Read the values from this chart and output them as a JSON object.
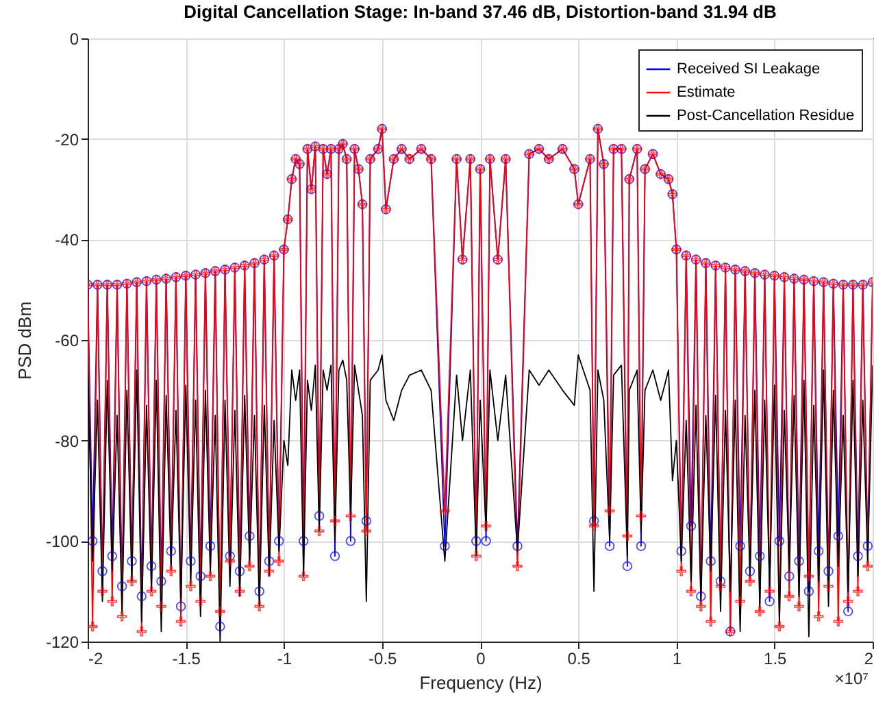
{
  "chart_data": {
    "type": "line",
    "title": "Digital Cancellation Stage: In-band 37.46 dB, Distortion-band 31.94 dB",
    "xlabel": "Frequency (Hz)",
    "ylabel": "PSD dBm",
    "annotations": [
      "×10⁷"
    ],
    "xlim": [
      -2,
      2
    ],
    "xticks": [
      -2,
      -1.5,
      -1,
      -0.5,
      0,
      0.5,
      1,
      1.5,
      2
    ],
    "ylim": [
      -120,
      0
    ],
    "yticks": [
      -120,
      -100,
      -80,
      -60,
      -40,
      -20,
      0
    ],
    "grid": true,
    "legend": "top right",
    "x": [
      -2,
      -1.975,
      -1.95,
      -1.925,
      -1.9,
      -1.875,
      -1.85,
      -1.825,
      -1.8,
      -1.775,
      -1.75,
      -1.725,
      -1.7,
      -1.675,
      -1.65,
      -1.625,
      -1.6,
      -1.575,
      -1.55,
      -1.525,
      -1.5,
      -1.475,
      -1.45,
      -1.425,
      -1.4,
      -1.375,
      -1.35,
      -1.325,
      -1.3,
      -1.275,
      -1.25,
      -1.225,
      -1.2,
      -1.175,
      -1.15,
      -1.125,
      -1.1,
      -1.075,
      -1.05,
      -1.025,
      -1,
      -0.98,
      -0.96,
      -0.94,
      -0.92,
      -0.9,
      -0.88,
      -0.86,
      -0.84,
      -0.82,
      -0.8,
      -0.78,
      -0.76,
      -0.74,
      -0.72,
      -0.7,
      -0.68,
      -0.66,
      -0.64,
      -0.62,
      -0.6,
      -0.58,
      -0.56,
      -0.52,
      -0.5,
      -0.48,
      -0.44,
      -0.4,
      -0.36,
      -0.3,
      -0.25,
      -0.18,
      -0.12,
      -0.09,
      -0.05,
      -0.02,
      0,
      0.03,
      0.05,
      0.09,
      0.13,
      0.19,
      0.25,
      0.3,
      0.35,
      0.42,
      0.48,
      0.5,
      0.56,
      0.58,
      0.6,
      0.63,
      0.66,
      0.68,
      0.72,
      0.75,
      0.76,
      0.8,
      0.82,
      0.84,
      0.88,
      0.92,
      0.96,
      0.98,
      1,
      1.025,
      1.05,
      1.075,
      1.1,
      1.125,
      1.15,
      1.175,
      1.2,
      1.225,
      1.25,
      1.275,
      1.3,
      1.325,
      1.35,
      1.375,
      1.4,
      1.425,
      1.45,
      1.475,
      1.5,
      1.525,
      1.55,
      1.575,
      1.6,
      1.625,
      1.65,
      1.675,
      1.7,
      1.725,
      1.75,
      1.775,
      1.8,
      1.825,
      1.85,
      1.875,
      1.9,
      1.925,
      1.95,
      1.975,
      2
    ],
    "series": [
      {
        "name": "Received SI Leakage",
        "color": "#0000ff",
        "marker": "circle",
        "values": [
          -49,
          -100,
          -49,
          -106,
          -49,
          -103,
          -49,
          -109,
          -48.8,
          -104,
          -48.5,
          -111,
          -48.3,
          -105,
          -48,
          -108,
          -47.8,
          -102,
          -47.5,
          -113,
          -47.2,
          -104,
          -47,
          -107,
          -46.7,
          -101,
          -46.3,
          -117,
          -46,
          -103,
          -45.6,
          -106,
          -45.2,
          -99,
          -44.7,
          -110,
          -44,
          -104,
          -43.2,
          -100,
          -42,
          -36,
          -28,
          -24,
          -25,
          -100,
          -22,
          -30,
          -21.5,
          -95,
          -22,
          -27,
          -22,
          -103,
          -22,
          -21,
          -24,
          -100,
          -22,
          -26,
          -33,
          -96,
          -24,
          -22,
          -18,
          -34,
          -24,
          -22,
          -24,
          -22,
          -24,
          -101,
          -24,
          -44,
          -24,
          -100,
          -26,
          -100,
          -24,
          -44,
          -24,
          -101,
          -23,
          -22,
          -24,
          -22,
          -26,
          -33,
          -24,
          -96,
          -18,
          -25,
          -101,
          -22,
          -22,
          -105,
          -28,
          -22,
          -101,
          -26,
          -23,
          -27,
          -28,
          -31,
          -42,
          -102,
          -43.2,
          -97,
          -44,
          -111,
          -44.7,
          -104,
          -45.2,
          -108,
          -45.6,
          -118,
          -46,
          -101,
          -46.3,
          -106,
          -46.7,
          -103,
          -47,
          -112,
          -47.2,
          -100,
          -47.5,
          -107,
          -47.8,
          -104,
          -48,
          -110,
          -48.3,
          -102,
          -48.5,
          -106,
          -48.8,
          -99,
          -49,
          -114,
          -49,
          -103,
          -49,
          -101,
          -48.5
        ]
      },
      {
        "name": "Estimate",
        "color": "#ff0000",
        "marker": "cross",
        "values": [
          -49,
          -117,
          -49,
          -110,
          -49,
          -112,
          -49,
          -115,
          -48.8,
          -108,
          -48.5,
          -118,
          -48.3,
          -110,
          -48,
          -113,
          -47.8,
          -106,
          -47.5,
          -116,
          -47.2,
          -109,
          -47,
          -112,
          -46.7,
          -107,
          -46.3,
          -114,
          -46,
          -104,
          -45.6,
          -110,
          -45.2,
          -105,
          -44.7,
          -113,
          -44,
          -106,
          -43.2,
          -104,
          -42,
          -36,
          -28,
          -24,
          -25,
          -107,
          -22,
          -30,
          -21.5,
          -98,
          -22,
          -27,
          -22,
          -96,
          -22,
          -21,
          -24,
          -95,
          -22,
          -26,
          -33,
          -98,
          -24,
          -22,
          -18,
          -34,
          -24,
          -22,
          -24,
          -22,
          -24,
          -94,
          -24,
          -44,
          -24,
          -103,
          -26,
          -97,
          -24,
          -44,
          -24,
          -105,
          -23,
          -22,
          -24,
          -22,
          -26,
          -33,
          -24,
          -97,
          -18,
          -25,
          -94,
          -22,
          -22,
          -99,
          -28,
          -22,
          -95,
          -26,
          -23,
          -27,
          -28,
          -31,
          -42,
          -106,
          -43.2,
          -110,
          -44,
          -113,
          -44.7,
          -116,
          -45.2,
          -109,
          -45.6,
          -118,
          -46,
          -112,
          -46.3,
          -108,
          -46.7,
          -114,
          -47,
          -110,
          -47.2,
          -117,
          -47.5,
          -111,
          -47.8,
          -113,
          -48,
          -107,
          -48.3,
          -115,
          -48.5,
          -109,
          -48.8,
          -116,
          -49,
          -112,
          -49,
          -110,
          -49,
          -105,
          -48.5
        ]
      },
      {
        "name": "Post-Cancellation Residue",
        "color": "#000000",
        "marker": "none",
        "values": [
          -65,
          -104,
          -72,
          -112,
          -68,
          -106,
          -75,
          -114,
          -70,
          -108,
          -66,
          -116,
          -73,
          -110,
          -68,
          -118,
          -71,
          -105,
          -74,
          -112,
          -69,
          -108,
          -72,
          -115,
          -70,
          -106,
          -75,
          -120,
          -72,
          -109,
          -74,
          -111,
          -71,
          -104,
          -75,
          -113,
          -73,
          -107,
          -76,
          -102,
          -80,
          -85,
          -66,
          -72,
          -66,
          -107,
          -68,
          -74,
          -65,
          -98,
          -66,
          -70,
          -65,
          -100,
          -66,
          -64,
          -68,
          -95,
          -65,
          -70,
          -75,
          -112,
          -68,
          -66,
          -63,
          -72,
          -76,
          -70,
          -67,
          -66,
          -70,
          -104,
          -67,
          -80,
          -66,
          -103,
          -72,
          -98,
          -66,
          -80,
          -67,
          -102,
          -66,
          -69,
          -66,
          -70,
          -73,
          -63,
          -70,
          -110,
          -66,
          -72,
          -100,
          -67,
          -65,
          -103,
          -70,
          -66,
          -98,
          -70,
          -66,
          -72,
          -66,
          -88,
          -80,
          -104,
          -76,
          -108,
          -73,
          -112,
          -75,
          -106,
          -71,
          -114,
          -74,
          -110,
          -72,
          -118,
          -75,
          -107,
          -70,
          -113,
          -72,
          -109,
          -69,
          -116,
          -74,
          -106,
          -71,
          -111,
          -68,
          -119,
          -73,
          -108,
          -66,
          -113,
          -70,
          -105,
          -75,
          -110,
          -68,
          -107,
          -72,
          -104,
          -65
        ]
      }
    ]
  }
}
